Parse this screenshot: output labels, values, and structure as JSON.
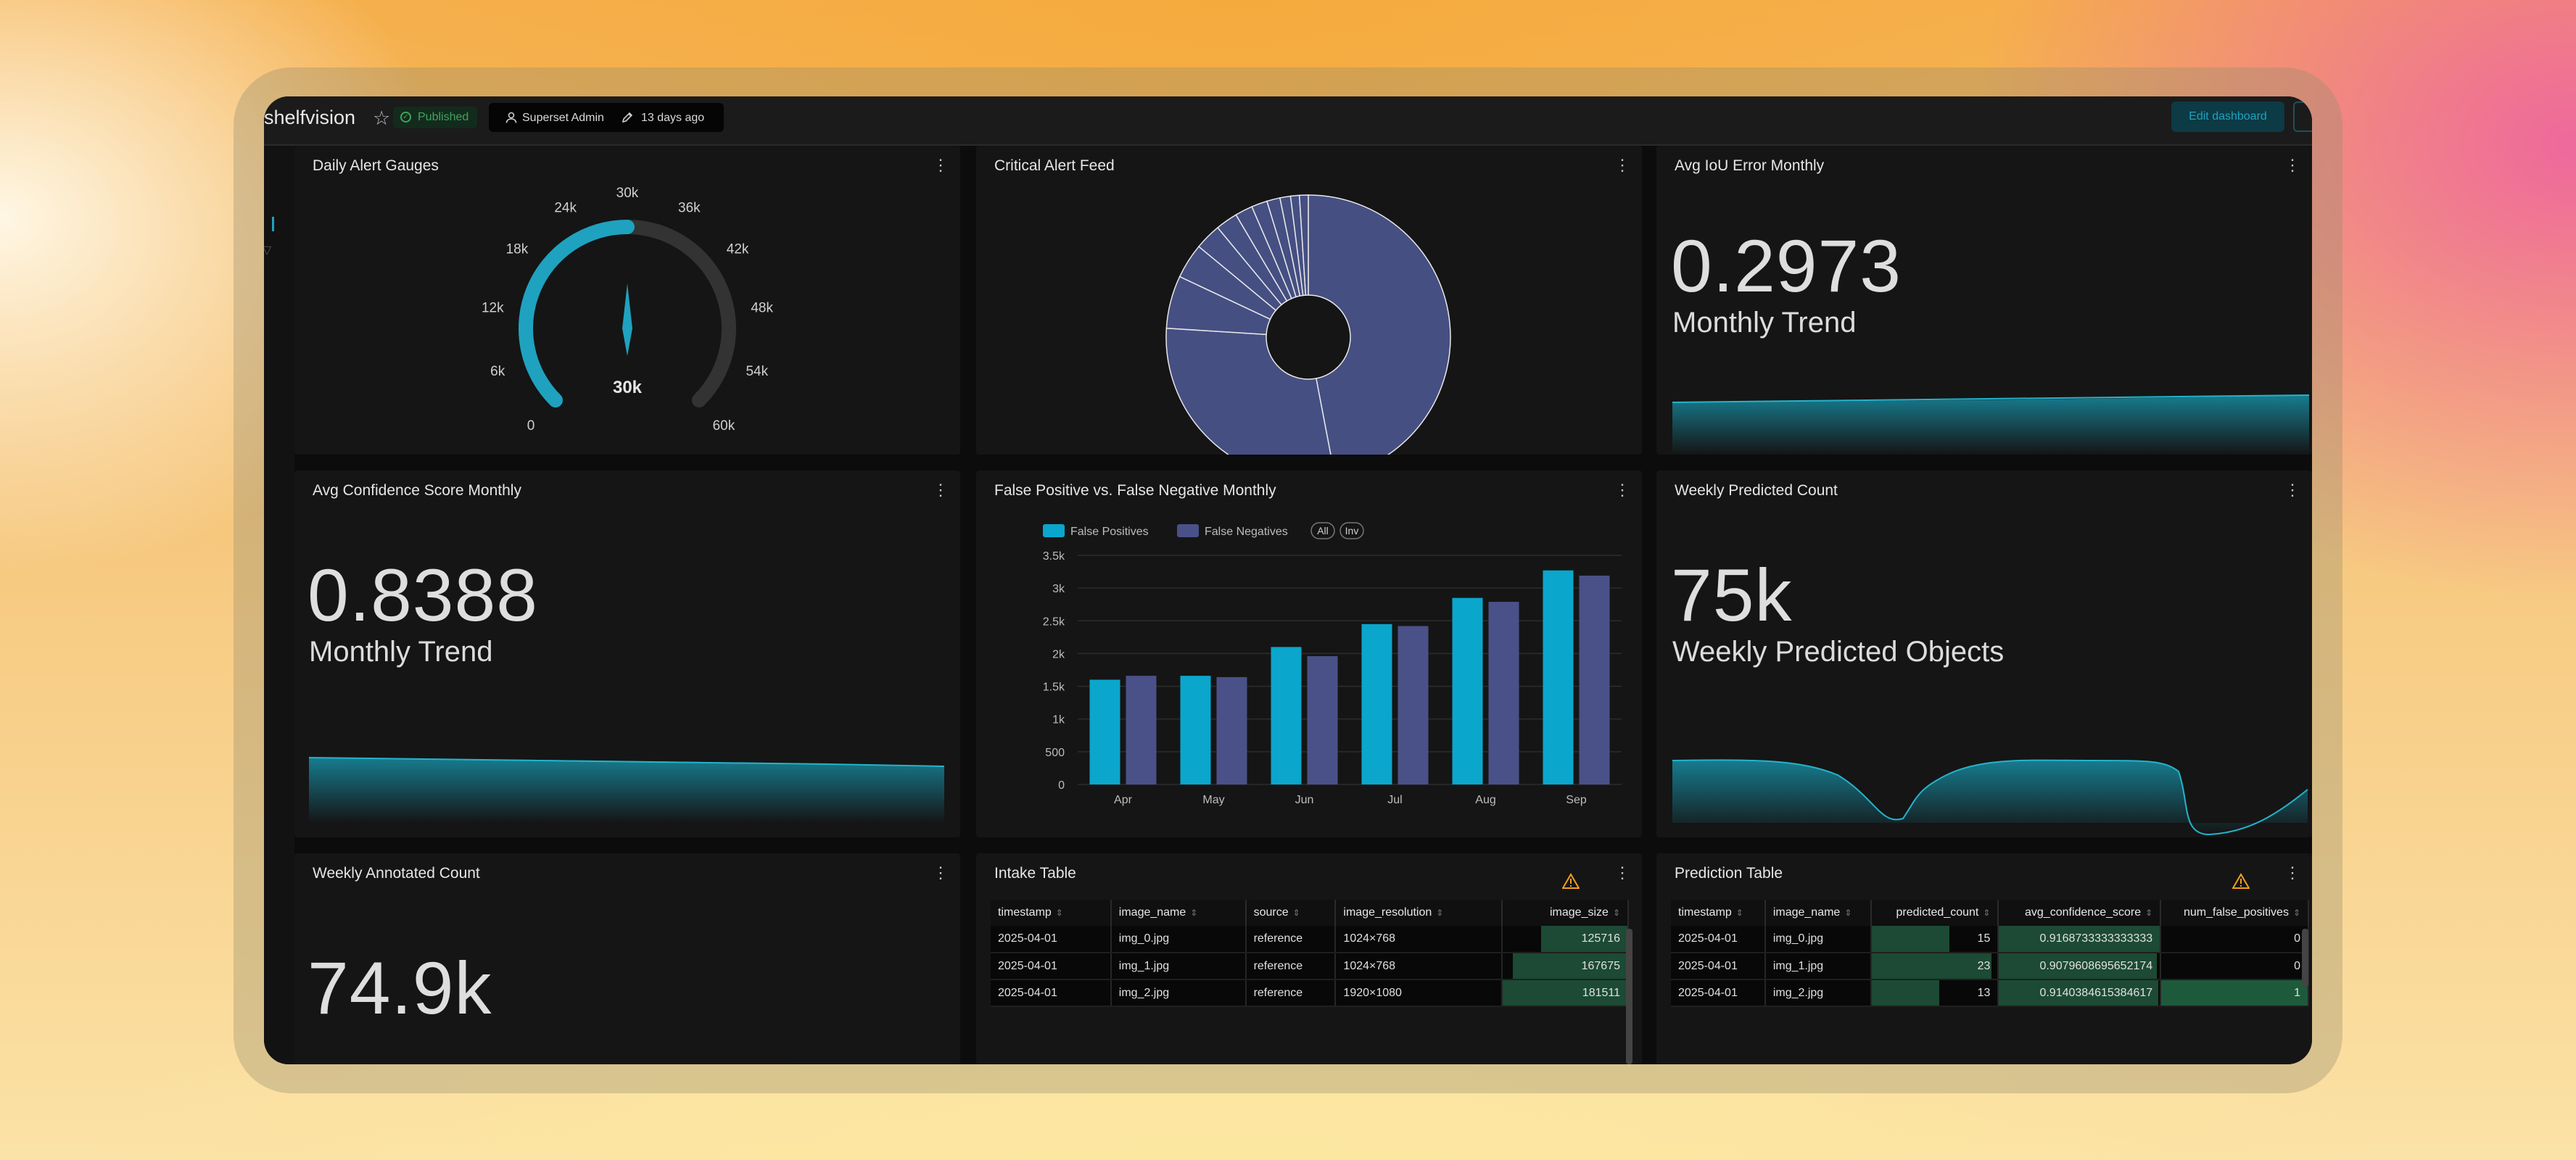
{
  "dashboard": {
    "title": "shelfvision",
    "status": "Published",
    "owner": "Superset Admin",
    "modified": "13 days ago",
    "edit_label": "Edit dashboard"
  },
  "cards": {
    "gauge": {
      "title": "Daily Alert Gauges",
      "value_label": "30k",
      "value": 30000,
      "max": 60000,
      "ticks": [
        "0",
        "6k",
        "12k",
        "18k",
        "24k",
        "30k",
        "36k",
        "42k",
        "48k",
        "54k",
        "60k"
      ]
    },
    "feed": {
      "title": "Critical Alert Feed"
    },
    "iou": {
      "title": "Avg IoU Error Monthly",
      "value": "0.2973",
      "subtitle": "Monthly Trend"
    },
    "confidence": {
      "title": "Avg Confidence Score Monthly",
      "value": "0.8388",
      "subtitle": "Monthly Trend"
    },
    "fpfn": {
      "title": "False Positive vs. False Negative Monthly",
      "legend_all": "All",
      "legend_inv": "Inv"
    },
    "predicted": {
      "title": "Weekly Predicted Count",
      "value": "75k",
      "subtitle": "Weekly Predicted Objects"
    },
    "annotated": {
      "title": "Weekly Annotated Count",
      "value": "74.9k"
    },
    "intake": {
      "title": "Intake Table",
      "columns": [
        "timestamp",
        "image_name",
        "source",
        "image_resolution",
        "image_size"
      ],
      "rows": [
        [
          "2025-04-01",
          "img_0.jpg",
          "reference",
          "1024×768",
          "125716"
        ],
        [
          "2025-04-01",
          "img_1.jpg",
          "reference",
          "1024×768",
          "167675"
        ],
        [
          "2025-04-01",
          "img_2.jpg",
          "reference",
          "1920×1080",
          "181511"
        ]
      ]
    },
    "prediction": {
      "title": "Prediction Table",
      "columns": [
        "timestamp",
        "image_name",
        "predicted_count",
        "avg_confidence_score",
        "num_false_positives"
      ],
      "rows": [
        [
          "2025-04-01",
          "img_0.jpg",
          "15",
          "0.9168733333333333",
          "0"
        ],
        [
          "2025-04-01",
          "img_1.jpg",
          "23",
          "0.9079608695652174",
          "0"
        ],
        [
          "2025-04-01",
          "img_2.jpg",
          "13",
          "0.9140384615384617",
          "1"
        ]
      ]
    }
  },
  "colors": {
    "accent": "#1fa2bf",
    "series_fp": "#0ba6cc",
    "series_fn": "#4a5188",
    "pie": "#454f82",
    "published": "#3fa360",
    "warning": "#f0a020"
  },
  "chart_data": [
    {
      "type": "bar",
      "categories": [
        "Apr",
        "May",
        "Jun",
        "Jul",
        "Aug",
        "Sep"
      ],
      "series": [
        {
          "name": "False Positives",
          "values": [
            1600,
            1660,
            2100,
            2450,
            2850,
            3270
          ]
        },
        {
          "name": "False Negatives",
          "values": [
            1660,
            1640,
            1960,
            2420,
            2790,
            3190
          ]
        }
      ],
      "ylim": [
        0,
        3500
      ],
      "yticks": [
        "0",
        "500",
        "1k",
        "1.5k",
        "2k",
        "2.5k",
        "3k",
        "3.5k"
      ],
      "legend": "top-left",
      "grid": true
    },
    {
      "type": "pie",
      "donut": true,
      "values": [
        47,
        29,
        6,
        4,
        3,
        2.5,
        2,
        1.8,
        1.5,
        1.2,
        1,
        1
      ]
    }
  ]
}
